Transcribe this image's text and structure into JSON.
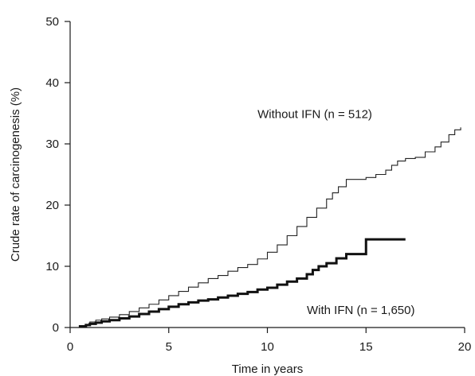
{
  "chart_data": {
    "type": "line",
    "xlabel": "Time in years",
    "ylabel": "Crude rate of carcinogenesis (%)",
    "xlim": [
      0,
      20
    ],
    "ylim": [
      0,
      50
    ],
    "xticks": [
      0,
      5,
      10,
      15,
      20
    ],
    "yticks": [
      0,
      10,
      20,
      30,
      40,
      50
    ],
    "grid": false,
    "step": true,
    "series": [
      {
        "name": "Without IFN (n = 512)",
        "color": "#222222",
        "weight": "thin",
        "x": [
          0.5,
          0.8,
          1.0,
          1.3,
          1.6,
          2.0,
          2.5,
          3.0,
          3.5,
          4.0,
          4.5,
          5.0,
          5.5,
          6.0,
          6.5,
          7.0,
          7.5,
          8.0,
          8.5,
          9.0,
          9.5,
          10.0,
          10.5,
          11.0,
          11.5,
          12.0,
          12.5,
          13.0,
          13.3,
          13.6,
          14.0,
          14.5,
          15.0,
          15.5,
          16.0,
          16.3,
          16.6,
          17.0,
          17.5,
          18.0,
          18.5,
          18.8,
          19.2,
          19.5,
          19.8
        ],
        "y": [
          0.2,
          0.5,
          0.9,
          1.2,
          1.4,
          1.7,
          2.1,
          2.6,
          3.2,
          3.8,
          4.5,
          5.2,
          5.9,
          6.6,
          7.3,
          8.0,
          8.5,
          9.2,
          9.8,
          10.3,
          11.2,
          12.3,
          13.5,
          15.0,
          16.5,
          18.0,
          19.5,
          21.0,
          22.0,
          23.0,
          24.2,
          24.2,
          24.5,
          25.0,
          25.7,
          26.5,
          27.2,
          27.6,
          27.8,
          28.7,
          29.5,
          30.3,
          31.5,
          32.3,
          32.7
        ]
      },
      {
        "name": "With IFN (n = 1,650)",
        "color": "#111111",
        "weight": "thick",
        "x": [
          0.5,
          0.8,
          1.0,
          1.3,
          1.6,
          2.0,
          2.5,
          3.0,
          3.5,
          4.0,
          4.5,
          5.0,
          5.5,
          6.0,
          6.5,
          7.0,
          7.5,
          8.0,
          8.5,
          9.0,
          9.5,
          10.0,
          10.5,
          11.0,
          11.5,
          12.0,
          12.3,
          12.6,
          13.0,
          13.5,
          14.0,
          14.5,
          15.0,
          15.5,
          16.0,
          17.0
        ],
        "y": [
          0.2,
          0.4,
          0.6,
          0.8,
          1.0,
          1.2,
          1.5,
          1.8,
          2.2,
          2.6,
          3.0,
          3.4,
          3.8,
          4.1,
          4.4,
          4.6,
          4.9,
          5.2,
          5.5,
          5.8,
          6.2,
          6.5,
          7.0,
          7.5,
          8.0,
          8.7,
          9.4,
          10.0,
          10.5,
          11.3,
          12.0,
          12.0,
          14.4,
          14.4,
          14.4,
          14.4
        ]
      }
    ],
    "annotations": [
      {
        "text": "Without IFN (n = 512)",
        "x": 9.5,
        "y": 34.2,
        "series_index": 0
      },
      {
        "text": "With IFN (n = 1,650)",
        "x": 12.0,
        "y": 2.2,
        "series_index": 1
      }
    ]
  }
}
